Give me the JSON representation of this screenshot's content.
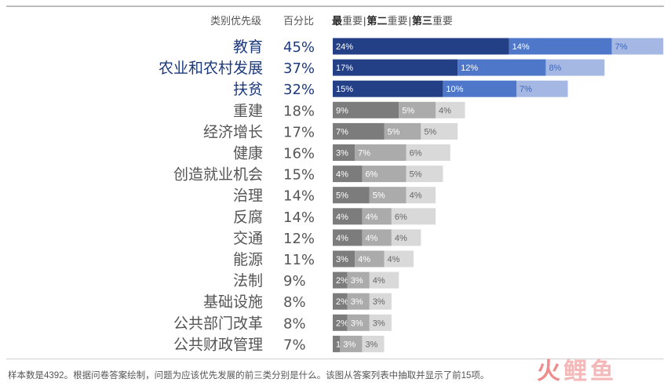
{
  "page": {
    "title": "",
    "footnote": "样本数是4392。根据问卷答案绘制，问题为应该优先发展的前三类分别是什么。该图从答案列表中抽取并显示了前15项。",
    "watermark_first": "火",
    "watermark_rest": "鲤鱼"
  },
  "header": {
    "category_label": "类别优先级",
    "percent_label": "百分比",
    "legend": [
      "最重要",
      "第二重要",
      "第三重要"
    ],
    "legend_bold": [
      "最",
      "第二",
      "第三"
    ],
    "legend_rest": [
      "重要",
      "重要",
      "重要"
    ]
  },
  "colors": {
    "highlight_text": "#1d3a7c",
    "normal_text": "#555555",
    "highlight_first": "#233f86",
    "highlight_second": "#4f77c9",
    "highlight_third": "#a4b8e3",
    "highlight_third_label": "#3f66b8",
    "normal_first": "#7c7c7c",
    "normal_second": "#ababab",
    "normal_third": "#d9d9d9",
    "normal_third_label": "#666666"
  },
  "chart_data": {
    "type": "bar",
    "orientation": "horizontal",
    "stacked": true,
    "xlim": [
      0,
      45
    ],
    "categories": [
      "教育",
      "农业和农村发展",
      "扶贫",
      "重建",
      "经济增长",
      "健康",
      "创造就业机会",
      "治理",
      "反腐",
      "交通",
      "能源",
      "法制",
      "基础设施",
      "公共部门改革",
      "公共财政管理"
    ],
    "totals": [
      45,
      37,
      32,
      18,
      17,
      16,
      15,
      14,
      14,
      12,
      11,
      9,
      8,
      8,
      7
    ],
    "highlighted": [
      true,
      true,
      true,
      false,
      false,
      false,
      false,
      false,
      false,
      false,
      false,
      false,
      false,
      false,
      false
    ],
    "series": [
      {
        "name": "最重要",
        "values": [
          24,
          17,
          15,
          9,
          7,
          3,
          4,
          5,
          4,
          4,
          3,
          2,
          2,
          2,
          1
        ]
      },
      {
        "name": "第二重要",
        "values": [
          14,
          12,
          10,
          5,
          5,
          7,
          6,
          5,
          4,
          4,
          4,
          3,
          3,
          3,
          3
        ]
      },
      {
        "name": "第三重要",
        "values": [
          7,
          8,
          7,
          4,
          5,
          6,
          5,
          4,
          6,
          4,
          4,
          4,
          3,
          3,
          3
        ]
      }
    ],
    "grid": false,
    "legend_position": "top"
  }
}
